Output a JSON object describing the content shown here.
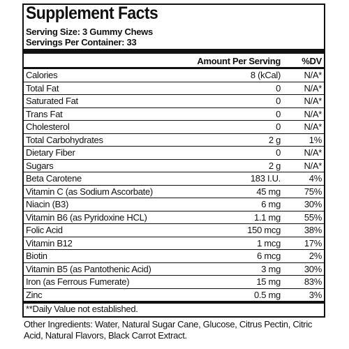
{
  "title": "Supplement Facts",
  "serving_size": "Serving Size: 3 Gummy Chews",
  "servings": "Servings Per Container: 33",
  "header": {
    "amount": "Amount Per Serving",
    "dv": "%DV"
  },
  "rows": [
    [
      "Calories",
      "8 (kCal)",
      "N/A*"
    ],
    [
      "Total Fat",
      "0",
      "N/A*"
    ],
    [
      "Saturated Fat",
      "0",
      "N/A*"
    ],
    [
      "Trans Fat",
      "0",
      "N/A*"
    ],
    [
      "Cholesterol",
      "0",
      "N/A*"
    ],
    [
      "Total Carbohydrates",
      "2 g",
      "1%"
    ],
    [
      "Dietary Fiber",
      "0",
      "N/A*"
    ],
    [
      "Sugars",
      "2 g",
      "N/A*"
    ],
    [
      "Beta Carotene",
      "183 I.U.",
      "4%"
    ],
    [
      "Vitamin C (as Sodium Ascorbate)",
      "45 mg",
      "75%"
    ],
    [
      "Niacin (B3)",
      "6 mg",
      "30%"
    ],
    [
      "Vitamin B6 (as Pyridoxine HCL)",
      "1.1 mg",
      "55%"
    ],
    [
      "Folic Acid",
      "150 mcg",
      "38%"
    ],
    [
      "Vitamin B12",
      "1 mcg",
      "17%"
    ],
    [
      "Biotin",
      "6 mcg",
      "2%"
    ],
    [
      "Vitamin B5 (as Pantothenic Acid)",
      "3 mg",
      "30%"
    ],
    [
      "Iron (as Ferrous Fumerate)",
      "15 mg",
      "83%"
    ],
    [
      "Zinc",
      "0.5 mg",
      "3%"
    ]
  ],
  "footnote": "**Daily Value not established.",
  "other_ingredients": "Other Ingredients: Water, Natural Sugar Cane, Glucose, Citrus Pectin, Citric Acid, Natural Flavors, Black Carrot Extract."
}
